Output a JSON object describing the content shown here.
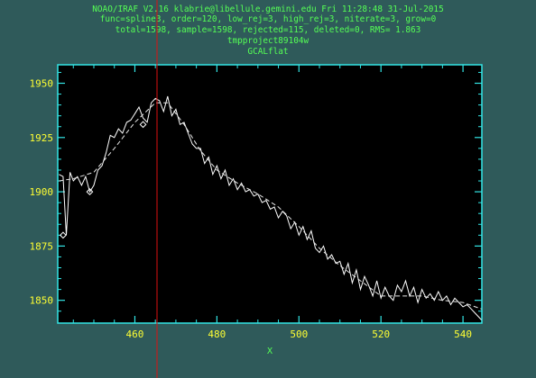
{
  "header": {
    "line1": "NOAO/IRAF V2.16 klabrie@libellule.gemini.edu Fri 11:28:48 31-Jul-2015",
    "line2": "func=spline3, order=120, low_rej=3, high_rej=3, niterate=3, grow=0",
    "line3": "total=1598, sample=1598, rejected=115, deleted=0, RMS=  1.863",
    "line4": "tmpproject89104w",
    "line5": "GCALflat"
  },
  "colors": {
    "background": "#2f5a5a",
    "plot_bg": "#000000",
    "axes": "#33e6e6",
    "text": "#55ff55",
    "tick_labels": "#ffff33",
    "data": "#ffffff",
    "cursor": "#dd1111"
  },
  "chart_data": {
    "type": "line",
    "xlabel": "X",
    "ylabel": "",
    "xlim": [
      441.2,
      544.6
    ],
    "ylim": [
      1839.5,
      1958.5
    ],
    "xticks": [
      460,
      480,
      500,
      520,
      540
    ],
    "yticks": [
      1850,
      1875,
      1900,
      1925,
      1950
    ],
    "xtick_labels": [
      "460",
      "480",
      "500",
      "520",
      "540"
    ],
    "ytick_labels": [
      "1850",
      "1875",
      "1900",
      "1925",
      "1950"
    ],
    "cursor_x": 465.4,
    "series": [
      {
        "style": "solid-white",
        "x": [
          441.5,
          442.5,
          443.3,
          444.2,
          445,
          446,
          447,
          448,
          449,
          450,
          451,
          452,
          453,
          454,
          455,
          456,
          457,
          458,
          459,
          460,
          461,
          462,
          463,
          464,
          465,
          466,
          467,
          468,
          469,
          470,
          471,
          472,
          473,
          474,
          475,
          476,
          477,
          478,
          479,
          480,
          481,
          482,
          483,
          484,
          485,
          486,
          487,
          488,
          489,
          490,
          491,
          492,
          493,
          494,
          495,
          496,
          497,
          498,
          499,
          500,
          501,
          502,
          503,
          504,
          505,
          506,
          507,
          508,
          509,
          510,
          511,
          512,
          513,
          514,
          515,
          516,
          517,
          518,
          519,
          520,
          521,
          522,
          523,
          524,
          525,
          526,
          527,
          528,
          529,
          530,
          531,
          532,
          533,
          534,
          535,
          536,
          537,
          538,
          539,
          540,
          541,
          542,
          543,
          544.5
        ],
        "y": [
          1908,
          1907,
          1880,
          1909,
          1905,
          1907,
          1903,
          1907,
          1900,
          1903,
          1910,
          1912,
          1918,
          1926,
          1925,
          1929,
          1927,
          1932,
          1933,
          1936,
          1939,
          1934,
          1932,
          1941,
          1943,
          1942,
          1937,
          1944,
          1935,
          1938,
          1931,
          1932,
          1927,
          1922,
          1920,
          1920,
          1913,
          1916,
          1908,
          1912,
          1906,
          1910,
          1903,
          1906,
          1901,
          1904,
          1900,
          1901,
          1898,
          1899,
          1895,
          1896,
          1892,
          1893,
          1888,
          1891,
          1889,
          1883,
          1886,
          1880,
          1884,
          1878,
          1882,
          1874,
          1872,
          1875,
          1869,
          1871,
          1867,
          1868,
          1862,
          1867,
          1858,
          1864,
          1855,
          1861,
          1857,
          1852,
          1859,
          1851,
          1856,
          1852,
          1850,
          1857,
          1854,
          1859,
          1852,
          1856,
          1849,
          1855,
          1851,
          1853,
          1850,
          1854,
          1850,
          1852,
          1848,
          1851,
          1849,
          1847,
          1848,
          1846,
          1844,
          1841
        ]
      },
      {
        "style": "dashed-fit",
        "x": [
          441.5,
          445,
          450,
          455,
          460,
          465,
          468,
          472,
          476,
          480,
          485,
          490,
          495,
          500,
          505,
          510,
          515,
          520,
          525,
          530,
          535,
          540,
          544.5
        ],
        "y": [
          1905,
          1906,
          1909,
          1920,
          1932,
          1941,
          1941,
          1931,
          1919,
          1910,
          1904,
          1899,
          1893,
          1884,
          1874,
          1866,
          1859,
          1852,
          1852,
          1852,
          1850,
          1849,
          1846
        ]
      }
    ],
    "rejected_points": [
      {
        "x": 442.5,
        "y": 1880
      },
      {
        "x": 449,
        "y": 1900
      },
      {
        "x": 462,
        "y": 1931
      }
    ]
  }
}
